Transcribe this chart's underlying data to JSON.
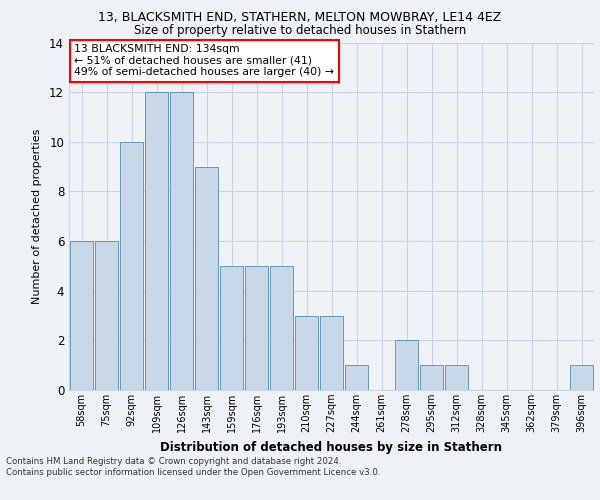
{
  "title1": "13, BLACKSMITH END, STATHERN, MELTON MOWBRAY, LE14 4EZ",
  "title2": "Size of property relative to detached houses in Stathern",
  "xlabel": "Distribution of detached houses by size in Stathern",
  "ylabel": "Number of detached properties",
  "categories": [
    "58sqm",
    "75sqm",
    "92sqm",
    "109sqm",
    "126sqm",
    "143sqm",
    "159sqm",
    "176sqm",
    "193sqm",
    "210sqm",
    "227sqm",
    "244sqm",
    "261sqm",
    "278sqm",
    "295sqm",
    "312sqm",
    "328sqm",
    "345sqm",
    "362sqm",
    "379sqm",
    "396sqm"
  ],
  "values": [
    6,
    6,
    10,
    12,
    12,
    9,
    5,
    5,
    5,
    3,
    3,
    1,
    0,
    2,
    1,
    1,
    0,
    0,
    0,
    0,
    1
  ],
  "bar_color": "#c8d8e8",
  "bar_edge_color": "#6699bb",
  "annotation_text": "13 BLACKSMITH END: 134sqm\n← 51% of detached houses are smaller (41)\n49% of semi-detached houses are larger (40) →",
  "annotation_box_color": "white",
  "annotation_box_edge_color": "red",
  "ylim": [
    0,
    14
  ],
  "yticks": [
    0,
    2,
    4,
    6,
    8,
    10,
    12,
    14
  ],
  "footer": "Contains HM Land Registry data © Crown copyright and database right 2024.\nContains public sector information licensed under the Open Government Licence v3.0.",
  "bg_color": "#eef2f7",
  "grid_color": "#c8d4e0"
}
